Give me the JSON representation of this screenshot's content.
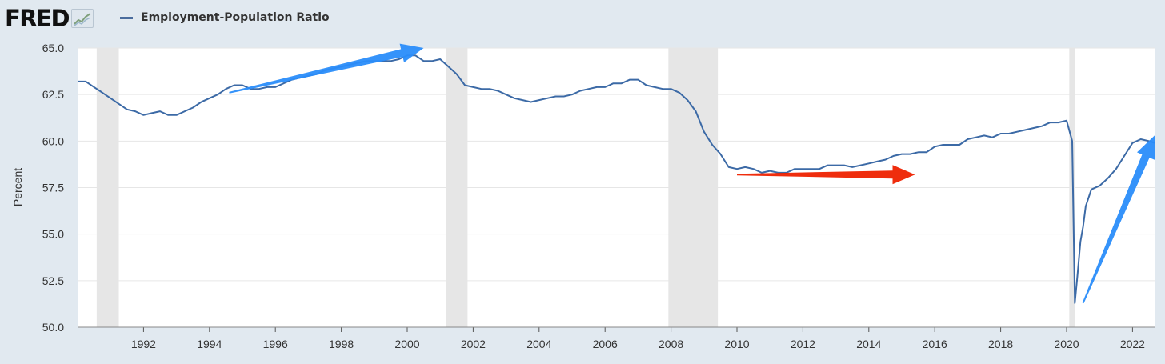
{
  "header": {
    "logo_text": "FRED",
    "logo_icon": "line-graph-icon",
    "legend_label": "Employment-Population Ratio"
  },
  "colors": {
    "page_bg": "#e1e9f0",
    "plot_bg": "#ffffff",
    "series": "#3c6aa6",
    "recession": "#e6e6e6",
    "gridline": "#e6e6e6",
    "arrow_blue": "#2a8dfa",
    "arrow_red": "#ee2200"
  },
  "chart_data": {
    "type": "line",
    "title": "",
    "xlabel": "",
    "ylabel": "Percent",
    "xlim": [
      1990.0,
      2022.67
    ],
    "ylim": [
      50.0,
      65.0
    ],
    "y_ticks": [
      50.0,
      52.5,
      55.0,
      57.5,
      60.0,
      62.5,
      65.0
    ],
    "y_tick_labels": [
      "50.0",
      "52.5",
      "55.0",
      "57.5",
      "60.0",
      "62.5",
      "65.0"
    ],
    "x_ticks": [
      1992,
      1994,
      1996,
      1998,
      2000,
      2002,
      2004,
      2006,
      2008,
      2010,
      2012,
      2014,
      2016,
      2018,
      2020,
      2022
    ],
    "x_tick_labels": [
      "1992",
      "1994",
      "1996",
      "1998",
      "2000",
      "2002",
      "2004",
      "2006",
      "2008",
      "2010",
      "2012",
      "2014",
      "2016",
      "2018",
      "2020",
      "2022"
    ],
    "grid": true,
    "legend_position": "top-left",
    "recessions": [
      [
        1990.58,
        1991.25
      ],
      [
        2001.17,
        2001.83
      ],
      [
        2007.92,
        2009.42
      ],
      [
        2020.08,
        2020.25
      ]
    ],
    "series": [
      {
        "name": "Employment-Population Ratio",
        "x": [
          1990.0,
          1990.25,
          1990.5,
          1990.75,
          1991.0,
          1991.25,
          1991.5,
          1991.75,
          1992.0,
          1992.25,
          1992.5,
          1992.75,
          1993.0,
          1993.25,
          1993.5,
          1993.75,
          1994.0,
          1994.25,
          1994.5,
          1994.75,
          1995.0,
          1995.25,
          1995.5,
          1995.75,
          1996.0,
          1996.25,
          1996.5,
          1996.75,
          1997.0,
          1997.25,
          1997.5,
          1997.75,
          1998.0,
          1998.25,
          1998.5,
          1998.75,
          1999.0,
          1999.25,
          1999.5,
          1999.75,
          2000.0,
          2000.25,
          2000.5,
          2000.75,
          2001.0,
          2001.25,
          2001.5,
          2001.75,
          2002.0,
          2002.25,
          2002.5,
          2002.75,
          2003.0,
          2003.25,
          2003.5,
          2003.75,
          2004.0,
          2004.25,
          2004.5,
          2004.75,
          2005.0,
          2005.25,
          2005.5,
          2005.75,
          2006.0,
          2006.25,
          2006.5,
          2006.75,
          2007.0,
          2007.25,
          2007.5,
          2007.75,
          2008.0,
          2008.25,
          2008.5,
          2008.75,
          2009.0,
          2009.25,
          2009.5,
          2009.75,
          2010.0,
          2010.25,
          2010.5,
          2010.75,
          2011.0,
          2011.25,
          2011.5,
          2011.75,
          2012.0,
          2012.25,
          2012.5,
          2012.75,
          2013.0,
          2013.25,
          2013.5,
          2013.75,
          2014.0,
          2014.25,
          2014.5,
          2014.75,
          2015.0,
          2015.25,
          2015.5,
          2015.75,
          2016.0,
          2016.25,
          2016.5,
          2016.75,
          2017.0,
          2017.25,
          2017.5,
          2017.75,
          2018.0,
          2018.25,
          2018.5,
          2018.75,
          2019.0,
          2019.25,
          2019.5,
          2019.75,
          2020.0,
          2020.17,
          2020.25,
          2020.33,
          2020.42,
          2020.5,
          2020.58,
          2020.75,
          2021.0,
          2021.25,
          2021.5,
          2021.75,
          2022.0,
          2022.25,
          2022.5,
          2022.67
        ],
        "values": [
          63.2,
          63.2,
          62.9,
          62.6,
          62.3,
          62.0,
          61.7,
          61.6,
          61.4,
          61.5,
          61.6,
          61.4,
          61.4,
          61.6,
          61.8,
          62.1,
          62.3,
          62.5,
          62.8,
          63.0,
          63.0,
          62.8,
          62.8,
          62.9,
          62.9,
          63.1,
          63.3,
          63.4,
          63.5,
          63.6,
          63.8,
          63.9,
          64.0,
          64.1,
          64.2,
          64.3,
          64.3,
          64.3,
          64.3,
          64.4,
          64.6,
          64.6,
          64.3,
          64.3,
          64.4,
          64.0,
          63.6,
          63.0,
          62.9,
          62.8,
          62.8,
          62.7,
          62.5,
          62.3,
          62.2,
          62.1,
          62.2,
          62.3,
          62.4,
          62.4,
          62.5,
          62.7,
          62.8,
          62.9,
          62.9,
          63.1,
          63.1,
          63.3,
          63.3,
          63.0,
          62.9,
          62.8,
          62.8,
          62.6,
          62.2,
          61.6,
          60.5,
          59.8,
          59.3,
          58.6,
          58.5,
          58.6,
          58.5,
          58.3,
          58.4,
          58.3,
          58.3,
          58.5,
          58.5,
          58.5,
          58.5,
          58.7,
          58.7,
          58.7,
          58.6,
          58.7,
          58.8,
          58.9,
          59.0,
          59.2,
          59.3,
          59.3,
          59.4,
          59.4,
          59.7,
          59.8,
          59.8,
          59.8,
          60.1,
          60.2,
          60.3,
          60.2,
          60.4,
          60.4,
          60.5,
          60.6,
          60.7,
          60.8,
          61.0,
          61.0,
          61.1,
          60.0,
          51.3,
          52.8,
          54.6,
          55.4,
          56.5,
          57.4,
          57.6,
          58.0,
          58.5,
          59.2,
          59.9,
          60.1,
          60.0,
          59.9
        ]
      }
    ],
    "annotations": [
      {
        "type": "arrow",
        "color": "blue",
        "from": [
          1994.6,
          62.6
        ],
        "to": [
          2000.5,
          65.0
        ]
      },
      {
        "type": "arrow",
        "color": "red",
        "from": [
          2010.0,
          58.2
        ],
        "to": [
          2015.4,
          58.2
        ]
      },
      {
        "type": "arrow",
        "color": "blue",
        "from": [
          2020.5,
          51.3
        ],
        "to": [
          2022.67,
          60.3
        ]
      }
    ]
  }
}
